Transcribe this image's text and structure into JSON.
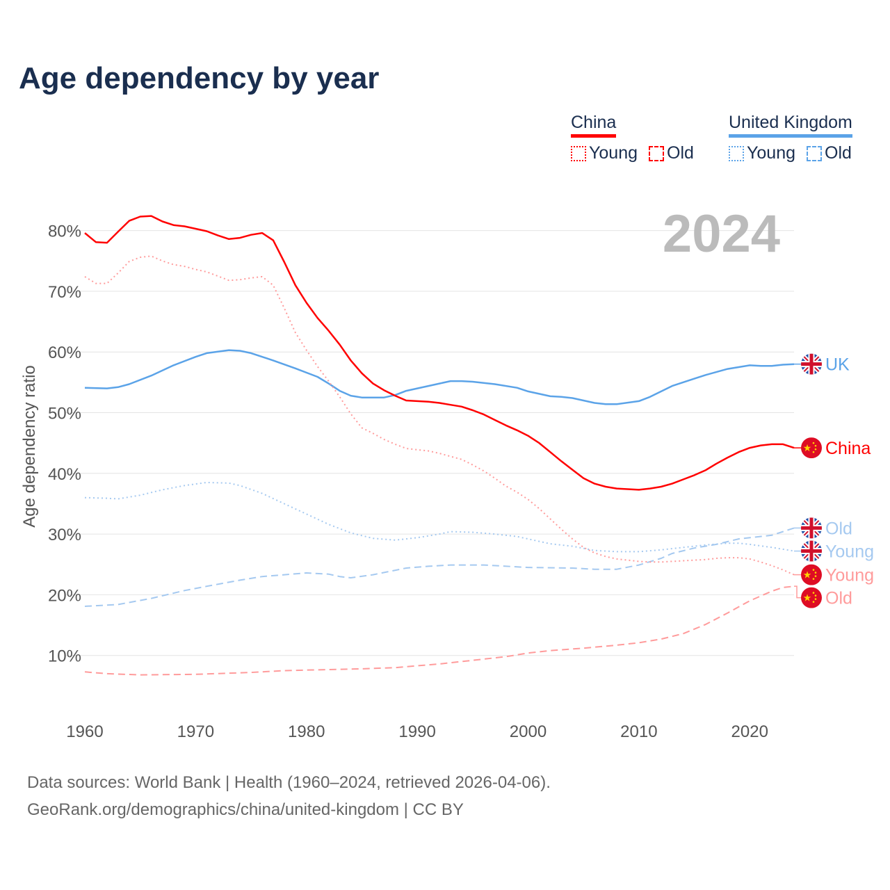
{
  "title": "Age dependency by year",
  "legend": {
    "groups": [
      {
        "country": "China",
        "color": "#ff0000",
        "young": "Young",
        "old": "Old"
      },
      {
        "country": "United Kingdom",
        "color": "#5ba3e8",
        "young": "Young",
        "old": "Old"
      }
    ]
  },
  "footer": {
    "line1": "Data sources: World Bank | Health (1960–2024, retrieved 2026-04-06).",
    "line2": "GeoRank.org/demographics/china/united-kingdom | CC BY"
  },
  "chart_data": {
    "type": "line",
    "title": "Age dependency by year",
    "ylabel": "Age dependency ratio",
    "xlabel": "",
    "year_watermark": "2024",
    "xlim": [
      1960,
      2024
    ],
    "ylim": [
      0,
      85
    ],
    "x_ticks": [
      "1960",
      "1970",
      "1980",
      "1990",
      "2000",
      "2010",
      "2020"
    ],
    "y_ticks": [
      "10%",
      "20%",
      "30%",
      "40%",
      "50%",
      "60%",
      "70%",
      "80%"
    ],
    "y_tick_values": [
      10,
      20,
      30,
      40,
      50,
      60,
      70,
      80
    ],
    "grid": true,
    "series": [
      {
        "name": "UK",
        "country": "uk",
        "kind": "Total",
        "label": "UK",
        "color": "#5ba3e8",
        "dash": "solid",
        "x": [
          1960,
          1962,
          1963,
          1964,
          1966,
          1968,
          1970,
          1971,
          1973,
          1974,
          1975,
          1977,
          1979,
          1981,
          1982,
          1983,
          1984,
          1985,
          1987,
          1988,
          1989,
          1991,
          1992,
          1993,
          1994,
          1995,
          1997,
          1999,
          2000,
          2002,
          2003,
          2004,
          2006,
          2007,
          2008,
          2010,
          2011,
          2013,
          2015,
          2016,
          2018,
          2020,
          2021,
          2022,
          2023,
          2024
        ],
        "y": [
          54.1,
          54.0,
          54.2,
          54.7,
          56.1,
          57.8,
          59.2,
          59.8,
          60.3,
          60.2,
          59.8,
          58.6,
          57.3,
          55.9,
          54.8,
          53.6,
          52.8,
          52.5,
          52.5,
          52.9,
          53.6,
          54.4,
          54.8,
          55.2,
          55.2,
          55.1,
          54.7,
          54.1,
          53.5,
          52.7,
          52.6,
          52.4,
          51.6,
          51.4,
          51.4,
          51.9,
          52.6,
          54.4,
          55.6,
          56.2,
          57.2,
          57.8,
          57.7,
          57.7,
          57.9,
          58.0
        ]
      },
      {
        "name": "China",
        "country": "china",
        "kind": "Total",
        "label": "China",
        "color": "#ff0000",
        "dash": "solid",
        "x": [
          1960,
          1961,
          1962,
          1963,
          1964,
          1965,
          1966,
          1967,
          1968,
          1969,
          1970,
          1971,
          1972,
          1973,
          1974,
          1975,
          1976,
          1977,
          1978,
          1979,
          1980,
          1981,
          1982,
          1983,
          1984,
          1985,
          1986,
          1987,
          1988,
          1989,
          1990,
          1991,
          1992,
          1993,
          1994,
          1995,
          1996,
          1997,
          1998,
          1999,
          2000,
          2001,
          2002,
          2003,
          2004,
          2005,
          2006,
          2007,
          2008,
          2009,
          2010,
          2011,
          2012,
          2013,
          2014,
          2015,
          2016,
          2017,
          2018,
          2019,
          2020,
          2021,
          2022,
          2023,
          2024
        ],
        "y": [
          79.6,
          78.1,
          78.0,
          79.8,
          81.6,
          82.3,
          82.4,
          81.5,
          80.9,
          80.7,
          80.3,
          79.9,
          79.2,
          78.6,
          78.8,
          79.3,
          79.6,
          78.4,
          74.8,
          71.0,
          68.1,
          65.6,
          63.5,
          61.2,
          58.6,
          56.5,
          54.8,
          53.7,
          52.8,
          52.0,
          51.9,
          51.8,
          51.6,
          51.3,
          51.0,
          50.4,
          49.7,
          48.8,
          47.9,
          47.1,
          46.2,
          45.0,
          43.5,
          42.0,
          40.6,
          39.2,
          38.3,
          37.8,
          37.5,
          37.4,
          37.3,
          37.5,
          37.8,
          38.3,
          39.0,
          39.7,
          40.5,
          41.6,
          42.6,
          43.5,
          44.2,
          44.6,
          44.8,
          44.8,
          44.2
        ]
      },
      {
        "name": "UK Old",
        "country": "uk",
        "kind": "Old",
        "label": "Old",
        "color": "#a5c9f0",
        "dash": "dashed",
        "x": [
          1960,
          1963,
          1966,
          1969,
          1971,
          1974,
          1976,
          1978,
          1980,
          1982,
          1983,
          1984,
          1986,
          1989,
          1991,
          1993,
          1996,
          2000,
          2004,
          2006,
          2008,
          2010,
          2012,
          2013,
          2015,
          2017,
          2019,
          2022,
          2024
        ],
        "y": [
          18.1,
          18.4,
          19.4,
          20.7,
          21.4,
          22.4,
          23.0,
          23.3,
          23.6,
          23.4,
          23.0,
          22.8,
          23.3,
          24.4,
          24.7,
          24.9,
          24.9,
          24.5,
          24.4,
          24.2,
          24.2,
          24.9,
          26.0,
          26.8,
          27.7,
          28.3,
          29.2,
          29.8,
          31.0
        ]
      },
      {
        "name": "UK Young",
        "country": "uk",
        "kind": "Young",
        "label": "Young",
        "color": "#a5c9f0",
        "dash": "dotted",
        "x": [
          1960,
          1962,
          1963,
          1965,
          1967,
          1969,
          1971,
          1973,
          1974,
          1976,
          1978,
          1980,
          1982,
          1984,
          1986,
          1988,
          1990,
          1992,
          1993,
          1995,
          1997,
          1999,
          2000,
          2002,
          2004,
          2006,
          2008,
          2010,
          2012,
          2014,
          2016,
          2018,
          2019,
          2020,
          2022,
          2024
        ],
        "y": [
          36.0,
          35.9,
          35.8,
          36.4,
          37.3,
          38.0,
          38.5,
          38.4,
          38.0,
          36.7,
          35.0,
          33.3,
          31.6,
          30.2,
          29.3,
          29.0,
          29.4,
          30.0,
          30.4,
          30.3,
          30.0,
          29.6,
          29.2,
          28.4,
          28.0,
          27.3,
          27.1,
          27.1,
          27.4,
          27.8,
          28.2,
          28.5,
          28.5,
          28.3,
          27.8,
          27.2
        ]
      },
      {
        "name": "China Young",
        "country": "china",
        "kind": "Young",
        "label": "Young",
        "color": "#ff9b9b",
        "dash": "dotted",
        "x": [
          1960,
          1961,
          1962,
          1963,
          1964,
          1965,
          1966,
          1967,
          1968,
          1969,
          1970,
          1971,
          1972,
          1973,
          1974,
          1975,
          1976,
          1977,
          1978,
          1979,
          1980,
          1981,
          1982,
          1983,
          1984,
          1985,
          1986,
          1987,
          1988,
          1989,
          1990,
          1991,
          1992,
          1993,
          1994,
          1995,
          1996,
          1997,
          1998,
          1999,
          2000,
          2001,
          2002,
          2003,
          2004,
          2005,
          2006,
          2007,
          2008,
          2009,
          2010,
          2011,
          2012,
          2013,
          2014,
          2015,
          2016,
          2017,
          2018,
          2019,
          2020,
          2021,
          2022,
          2023,
          2024
        ],
        "y": [
          72.4,
          71.3,
          71.3,
          73.0,
          74.9,
          75.6,
          75.8,
          75.0,
          74.4,
          74.1,
          73.6,
          73.2,
          72.5,
          71.8,
          71.9,
          72.2,
          72.4,
          71.0,
          67.2,
          63.2,
          60.3,
          57.6,
          55.2,
          52.6,
          49.8,
          47.5,
          46.6,
          45.6,
          44.8,
          44.1,
          43.9,
          43.7,
          43.3,
          42.8,
          42.3,
          41.4,
          40.4,
          39.2,
          37.9,
          36.9,
          35.7,
          34.2,
          32.5,
          30.8,
          29.2,
          27.8,
          26.9,
          26.3,
          25.9,
          25.7,
          25.5,
          25.4,
          25.4,
          25.5,
          25.6,
          25.7,
          25.8,
          26.0,
          26.1,
          26.1,
          25.9,
          25.4,
          24.8,
          24.1,
          23.3
        ]
      },
      {
        "name": "China Old",
        "country": "china",
        "kind": "Old",
        "label": "Old",
        "color": "#ff9b9b",
        "dash": "dashed",
        "x": [
          1960,
          1962,
          1965,
          1970,
          1975,
          1978,
          1980,
          1985,
          1988,
          1990,
          1992,
          1995,
          1998,
          2000,
          2002,
          2005,
          2008,
          2010,
          2012,
          2014,
          2016,
          2018,
          2020,
          2022,
          2023,
          2024
        ],
        "y": [
          7.3,
          7.0,
          6.8,
          6.9,
          7.2,
          7.5,
          7.6,
          7.8,
          8.0,
          8.3,
          8.6,
          9.2,
          9.8,
          10.4,
          10.8,
          11.2,
          11.7,
          12.1,
          12.7,
          13.6,
          15.1,
          17.0,
          19.0,
          20.6,
          21.2,
          21.4
        ]
      }
    ]
  }
}
